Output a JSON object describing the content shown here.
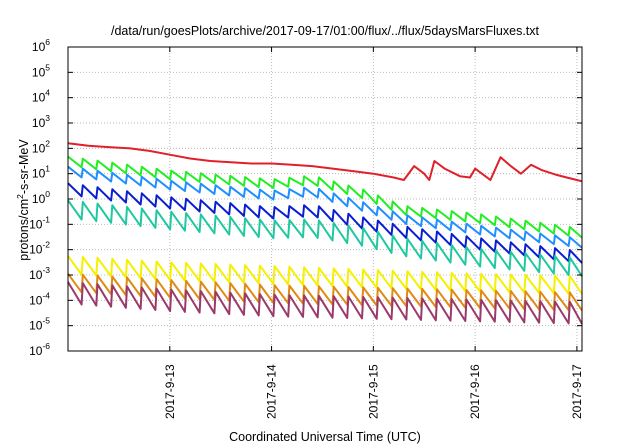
{
  "chart_data": {
    "type": "line",
    "title": "/data/run/goesPlots/archive/2017-09-17/01:00/flux/../flux/5daysMarsFluxes.txt",
    "xlabel": "Coordinated Universal Time (UTC)",
    "ylabel": {
      "base": "protons/cm",
      "sup": "2",
      "rest": "-s-sr-MeV"
    },
    "y_scale": "log",
    "ylim_exponent": [
      -6,
      6
    ],
    "y_ticks": [
      {
        "base": "10",
        "exp": "-6",
        "value": -6
      },
      {
        "base": "10",
        "exp": "-5",
        "value": -5
      },
      {
        "base": "10",
        "exp": "-4",
        "value": -4
      },
      {
        "base": "10",
        "exp": "-3",
        "value": -3
      },
      {
        "base": "10",
        "exp": "-2",
        "value": -2
      },
      {
        "base": "10",
        "exp": "-1",
        "value": -1
      },
      {
        "base": "10",
        "exp": "0",
        "value": 0
      },
      {
        "base": "10",
        "exp": "1",
        "value": 1
      },
      {
        "base": "10",
        "exp": "2",
        "value": 2
      },
      {
        "base": "10",
        "exp": "3",
        "value": 3
      },
      {
        "base": "10",
        "exp": "4",
        "value": 4
      },
      {
        "base": "10",
        "exp": "5",
        "value": 5
      },
      {
        "base": "10",
        "exp": "6",
        "value": 6
      }
    ],
    "xlim_days_since_2017_09_12": [
      0.0,
      5.05
    ],
    "x_ticks": [
      {
        "label": "2017-9-13",
        "day": 1.0
      },
      {
        "label": "2017-9-14",
        "day": 2.0
      },
      {
        "label": "2017-9-15",
        "day": 3.0
      },
      {
        "label": "2017-9-16",
        "day": 4.0
      },
      {
        "label": "2017-9-17",
        "day": 5.0
      }
    ],
    "grid": true,
    "series": [
      {
        "color": "#e0202a",
        "points": [
          [
            0.0,
            2.2
          ],
          [
            0.2,
            2.1
          ],
          [
            0.4,
            2.05
          ],
          [
            0.6,
            2.0
          ],
          [
            0.8,
            1.9
          ],
          [
            1.0,
            1.75
          ],
          [
            1.2,
            1.6
          ],
          [
            1.4,
            1.5
          ],
          [
            1.6,
            1.45
          ],
          [
            1.8,
            1.4
          ],
          [
            2.0,
            1.4
          ],
          [
            2.2,
            1.35
          ],
          [
            2.4,
            1.3
          ],
          [
            2.6,
            1.2
          ],
          [
            2.8,
            1.1
          ],
          [
            3.0,
            1.0
          ],
          [
            3.2,
            0.85
          ],
          [
            3.3,
            0.75
          ],
          [
            3.4,
            1.3
          ],
          [
            3.5,
            1.0
          ],
          [
            3.55,
            0.75
          ],
          [
            3.6,
            1.5
          ],
          [
            3.7,
            1.2
          ],
          [
            3.85,
            0.9
          ],
          [
            3.95,
            0.85
          ],
          [
            4.0,
            1.2
          ],
          [
            4.1,
            0.9
          ],
          [
            4.15,
            0.75
          ],
          [
            4.25,
            1.65
          ],
          [
            4.35,
            1.3
          ],
          [
            4.45,
            1.0
          ],
          [
            4.55,
            1.35
          ],
          [
            4.65,
            1.15
          ],
          [
            4.8,
            0.95
          ],
          [
            4.9,
            0.85
          ],
          [
            5.0,
            0.75
          ],
          [
            5.05,
            0.7
          ]
        ]
      },
      {
        "color": "#22ee22",
        "start": 1.5,
        "drift": [
          [
            0,
            1.5
          ],
          [
            1.0,
            0.95
          ],
          [
            2.0,
            0.6
          ],
          [
            2.4,
            0.75
          ],
          [
            2.9,
            0.2
          ],
          [
            3.3,
            -0.45
          ],
          [
            4.0,
            -0.75
          ],
          [
            5.05,
            -1.35
          ]
        ],
        "amp": 0.35,
        "period": 0.145,
        "days": 5.05
      },
      {
        "color": "#1e8fff",
        "drift": [
          [
            0,
            1.1
          ],
          [
            1.0,
            0.55
          ],
          [
            2.0,
            0.15
          ],
          [
            2.4,
            0.3
          ],
          [
            2.9,
            -0.3
          ],
          [
            3.3,
            -0.8
          ],
          [
            4.0,
            -1.2
          ],
          [
            5.05,
            -1.75
          ]
        ],
        "amp": 0.35,
        "period": 0.145,
        "days": 5.05
      },
      {
        "color": "#0a1ed0",
        "drift": [
          [
            0,
            0.4
          ],
          [
            1.0,
            -0.15
          ],
          [
            2.0,
            -0.55
          ],
          [
            2.4,
            -0.45
          ],
          [
            2.9,
            -0.95
          ],
          [
            3.3,
            -1.3
          ],
          [
            4.0,
            -1.75
          ],
          [
            5.05,
            -2.3
          ]
        ],
        "amp": 0.45,
        "period": 0.145,
        "days": 5.05
      },
      {
        "color": "#20c8a0",
        "drift": [
          [
            0,
            -0.4
          ],
          [
            1.0,
            -0.85
          ],
          [
            2.0,
            -1.2
          ],
          [
            2.4,
            -1.15
          ],
          [
            2.9,
            -1.5
          ],
          [
            3.3,
            -1.9
          ],
          [
            4.0,
            -2.3
          ],
          [
            5.05,
            -2.7
          ]
        ],
        "amp": 0.7,
        "period": 0.145,
        "days": 5.05
      },
      {
        "color": "#f4f000",
        "drift": [
          [
            0,
            -2.6
          ],
          [
            1.0,
            -2.85
          ],
          [
            2.0,
            -3.0
          ],
          [
            3.0,
            -3.15
          ],
          [
            4.0,
            -3.3
          ],
          [
            5.05,
            -3.4
          ]
        ],
        "amp": 0.7,
        "period": 0.145,
        "days": 5.05
      },
      {
        "color": "#e08a14",
        "drift": [
          [
            0,
            -3.3
          ],
          [
            1.0,
            -3.55
          ],
          [
            2.0,
            -3.75
          ],
          [
            3.0,
            -3.85
          ],
          [
            4.0,
            -3.95
          ],
          [
            5.05,
            -4.05
          ]
        ],
        "amp": 0.7,
        "period": 0.145,
        "days": 5.05
      },
      {
        "color": "#9a3a6a",
        "drift": [
          [
            0,
            -3.7
          ],
          [
            1.0,
            -4.0
          ],
          [
            2.0,
            -4.2
          ],
          [
            3.0,
            -4.3
          ],
          [
            4.0,
            -4.4
          ],
          [
            5.05,
            -4.5
          ]
        ],
        "amp": 0.85,
        "period": 0.145,
        "days": 5.05
      }
    ]
  }
}
